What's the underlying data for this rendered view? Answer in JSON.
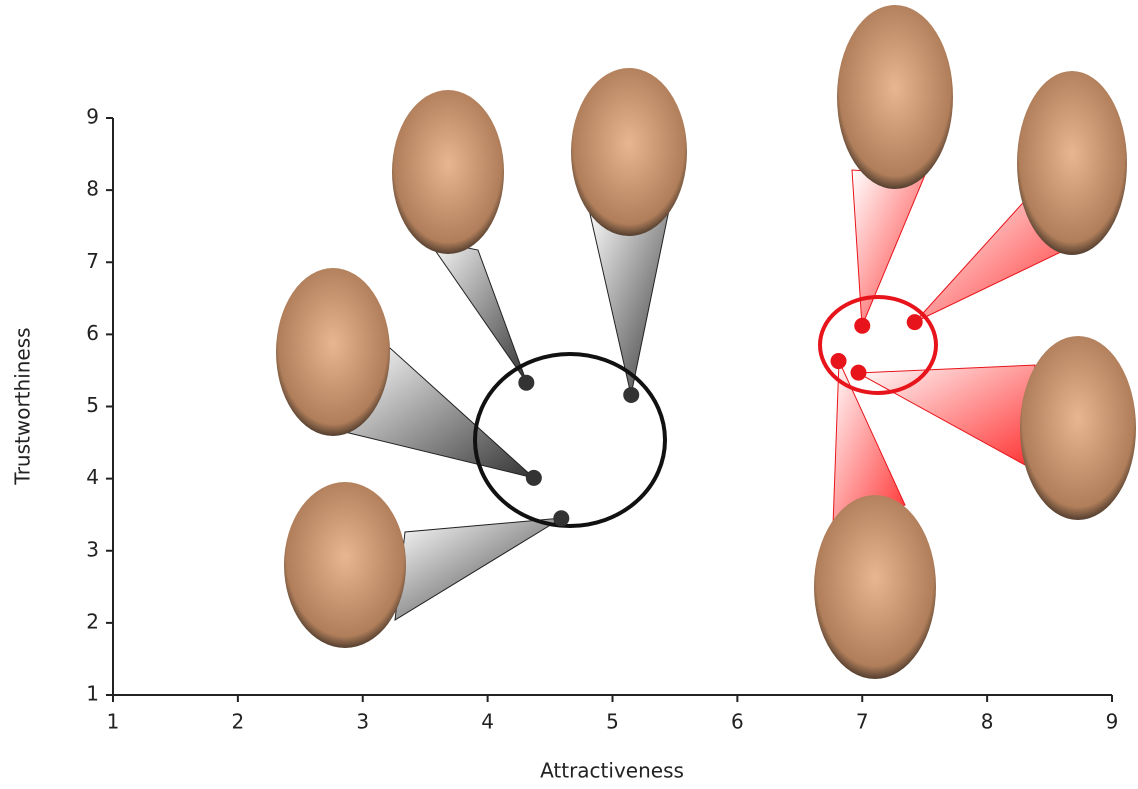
{
  "chart_data": {
    "type": "scatter",
    "x_label": "Attractiveness",
    "y_label": "Trustworthiness",
    "xlim": [
      1,
      9
    ],
    "ylim": [
      1,
      9
    ],
    "xticks": [
      1,
      2,
      3,
      4,
      5,
      6,
      7,
      8,
      9
    ],
    "yticks": [
      1,
      2,
      3,
      4,
      5,
      6,
      7,
      8,
      9
    ],
    "series": [
      {
        "color": "#333333",
        "x": [
          4.31,
          5.15,
          4.37,
          4.59
        ],
        "values": [
          5.33,
          5.16,
          4.01,
          3.45
        ]
      },
      {
        "color": "#e8141b",
        "x": [
          7.0,
          7.42,
          6.81,
          6.97
        ],
        "values": [
          6.12,
          6.17,
          5.63,
          5.47
        ]
      }
    ]
  }
}
